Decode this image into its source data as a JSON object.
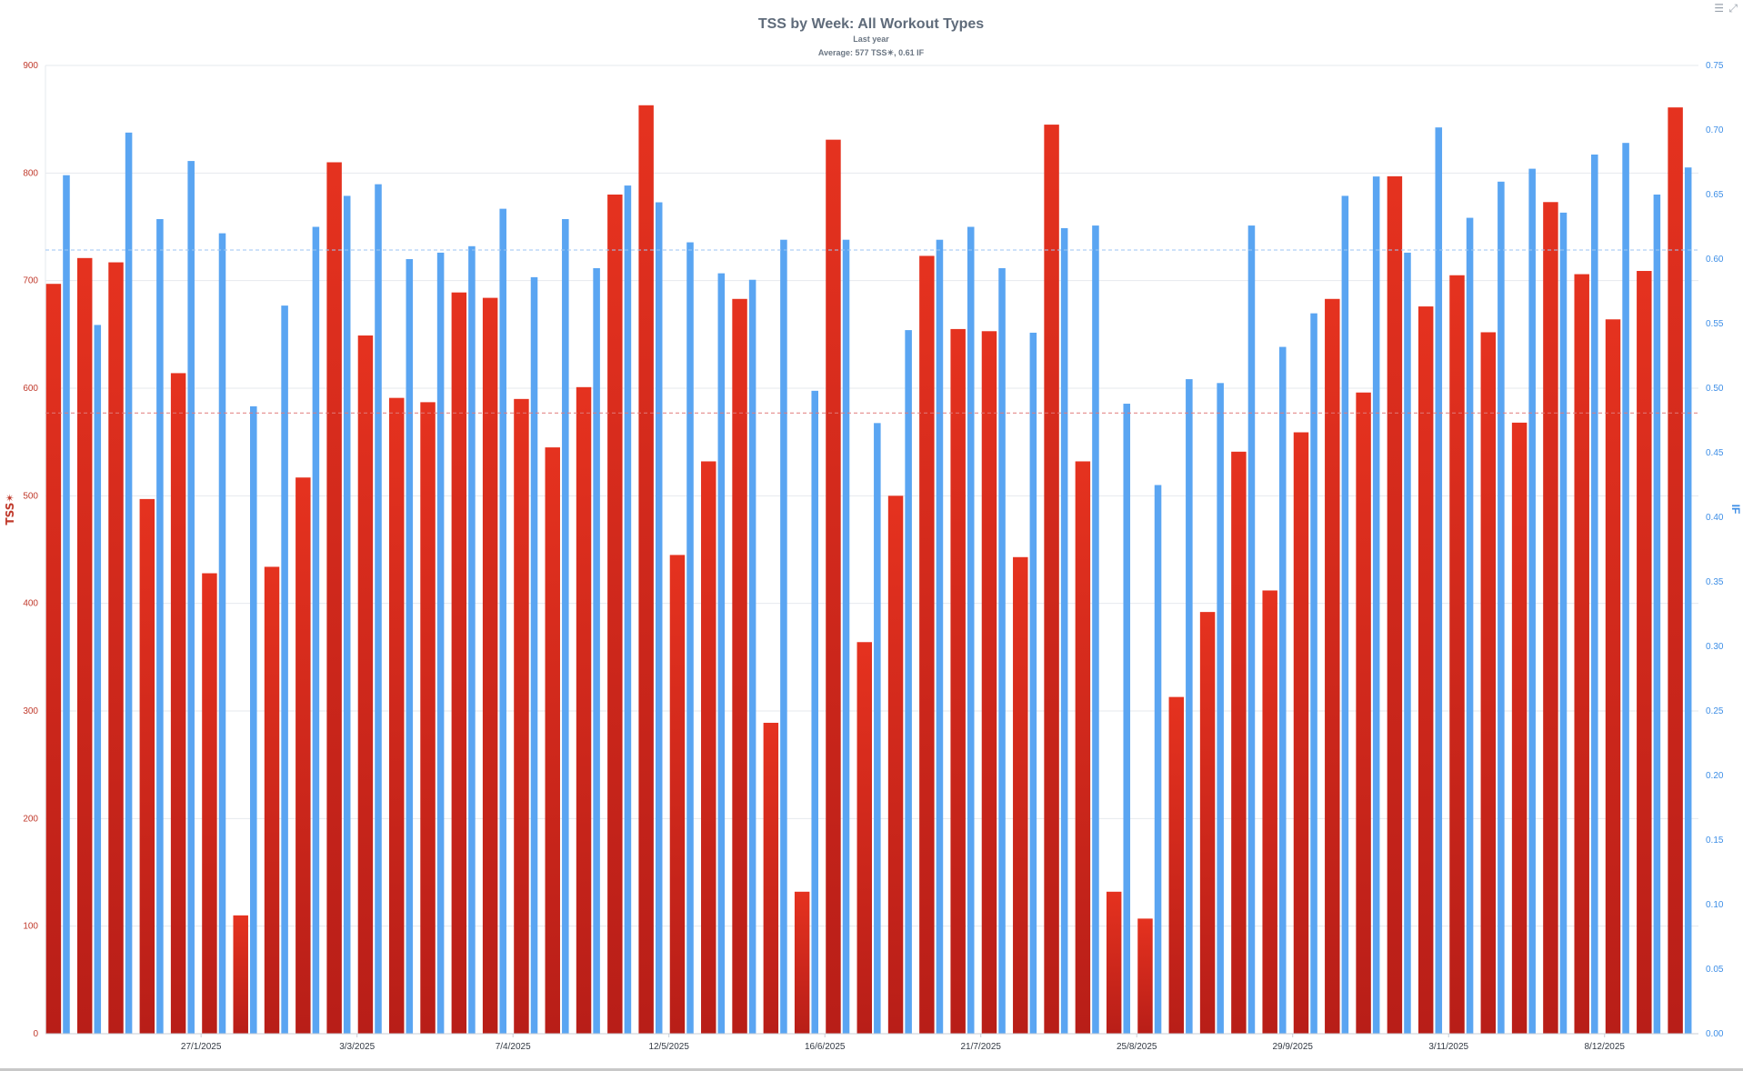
{
  "header": {
    "title": "TSS by Week: All Workout Types",
    "subtitle": "Last year",
    "average": "Average: 577 TSS✴, 0.61 IF"
  },
  "toolbar": {
    "menu_icon": "hamburger-icon",
    "expand_icon": "expand-icon",
    "menu_glyph": "☰",
    "expand_glyph": "⤢"
  },
  "colors": {
    "tss": "#d9281c",
    "if": "#5aa5f2",
    "title": "#5f6b7a",
    "left_axis": "#c0392b",
    "right_axis": "#3d8ee6",
    "grid": "#e6e9ee"
  },
  "chart_data": {
    "type": "bar",
    "x_tick_labels": [
      "27/1/2025",
      "3/3/2025",
      "7/4/2025",
      "12/5/2025",
      "16/6/2025",
      "21/7/2025",
      "25/8/2025",
      "29/9/2025",
      "3/11/2025",
      "8/12/2025"
    ],
    "x_tick_positions": [
      5,
      10,
      15,
      20,
      25,
      30,
      35,
      40,
      45,
      50
    ],
    "y_left": {
      "label": "TSS✴",
      "range": [
        0,
        900
      ],
      "ticks": [
        0,
        100,
        200,
        300,
        400,
        500,
        600,
        700,
        800,
        900
      ]
    },
    "y_right": {
      "label": "IF",
      "range": [
        0,
        0.75
      ],
      "ticks": [
        "0.00",
        "0.05",
        "0.10",
        "0.15",
        "0.20",
        "0.25",
        "0.30",
        "0.35",
        "0.40",
        "0.45",
        "0.50",
        "0.55",
        "0.60",
        "0.65",
        "0.70",
        "0.75"
      ]
    },
    "grid": true,
    "average_lines": {
      "tss": 577,
      "if": 0.607
    },
    "series": [
      {
        "name": "TSS✴",
        "axis": "left",
        "values": [
          697,
          721,
          717,
          497,
          614,
          428,
          110,
          434,
          517,
          810,
          649,
          591,
          587,
          689,
          684,
          590,
          545,
          601,
          780,
          863,
          445,
          532,
          683,
          289,
          132,
          831,
          364,
          500,
          723,
          655,
          653,
          443,
          845,
          532,
          132,
          107,
          313,
          392,
          541,
          412,
          559,
          683,
          596,
          797,
          676,
          705,
          652,
          568,
          773,
          706,
          664,
          709,
          861
        ]
      },
      {
        "name": "IF",
        "axis": "right",
        "values": [
          0.665,
          0.549,
          0.698,
          0.631,
          0.676,
          0.62,
          0.486,
          0.564,
          0.625,
          0.649,
          0.658,
          0.6,
          0.605,
          0.61,
          0.639,
          0.586,
          0.631,
          0.593,
          0.657,
          0.644,
          0.613,
          0.589,
          0.584,
          0.615,
          0.498,
          0.615,
          0.473,
          0.545,
          0.615,
          0.625,
          0.593,
          0.543,
          0.624,
          0.626,
          0.488,
          0.425,
          0.507,
          0.504,
          0.626,
          0.532,
          0.558,
          0.649,
          0.664,
          0.605,
          0.702,
          0.632,
          0.66,
          0.67,
          0.636,
          0.681,
          0.69,
          0.65,
          0.671
        ]
      }
    ]
  }
}
